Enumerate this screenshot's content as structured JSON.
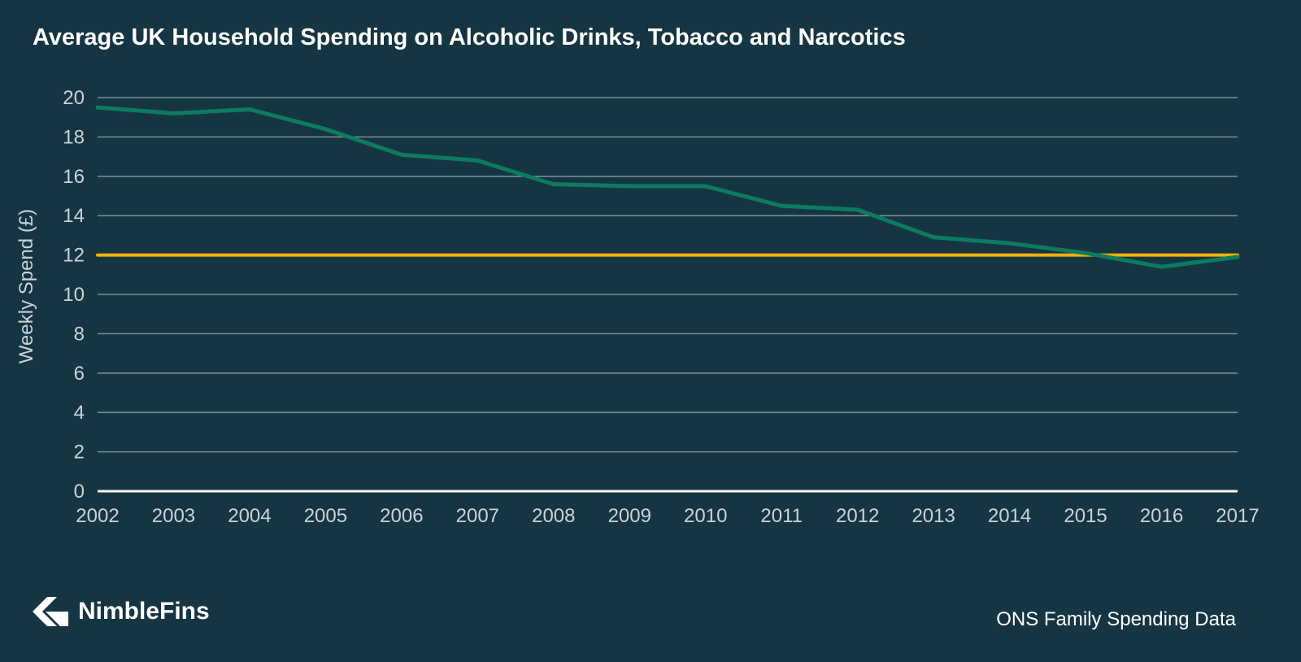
{
  "chart_data": {
    "type": "line",
    "title": "Average UK Household Spending on Alcoholic Drinks, Tobacco and Narcotics",
    "ylabel": "Weekly Spend (£)",
    "xlabel": "",
    "x": [
      2002,
      2003,
      2004,
      2005,
      2006,
      2007,
      2008,
      2009,
      2010,
      2011,
      2012,
      2013,
      2014,
      2015,
      2016,
      2017
    ],
    "x_tick_labels": [
      "2002",
      "2003",
      "2004",
      "2005",
      "2006",
      "2007",
      "2008",
      "2009",
      "2010",
      "2011",
      "2012",
      "2013",
      "2014",
      "2015",
      "2016",
      "2017"
    ],
    "ylim": [
      0,
      20
    ],
    "y_ticks": [
      0,
      2,
      4,
      6,
      8,
      10,
      12,
      14,
      16,
      18,
      20
    ],
    "grid": true,
    "series": [
      {
        "color": "#0e7a5f",
        "values": [
          19.5,
          19.2,
          19.4,
          18.4,
          17.1,
          16.8,
          15.6,
          15.5,
          15.5,
          14.5,
          14.3,
          12.9,
          12.6,
          12.1,
          11.4,
          11.9
        ]
      },
      {
        "color": "#f2b205",
        "values": [
          12,
          12,
          12,
          12,
          12,
          12,
          12,
          12,
          12,
          12,
          12,
          12,
          12,
          12,
          12,
          12
        ]
      }
    ],
    "colors": {
      "background": "#163542",
      "gridline": "#8a9ca4",
      "axis": "#ffffff"
    }
  },
  "footer": {
    "brand": "NimbleFins",
    "logo_icon": "nimblefins-logo-icon",
    "source": "ONS Family Spending Data"
  }
}
